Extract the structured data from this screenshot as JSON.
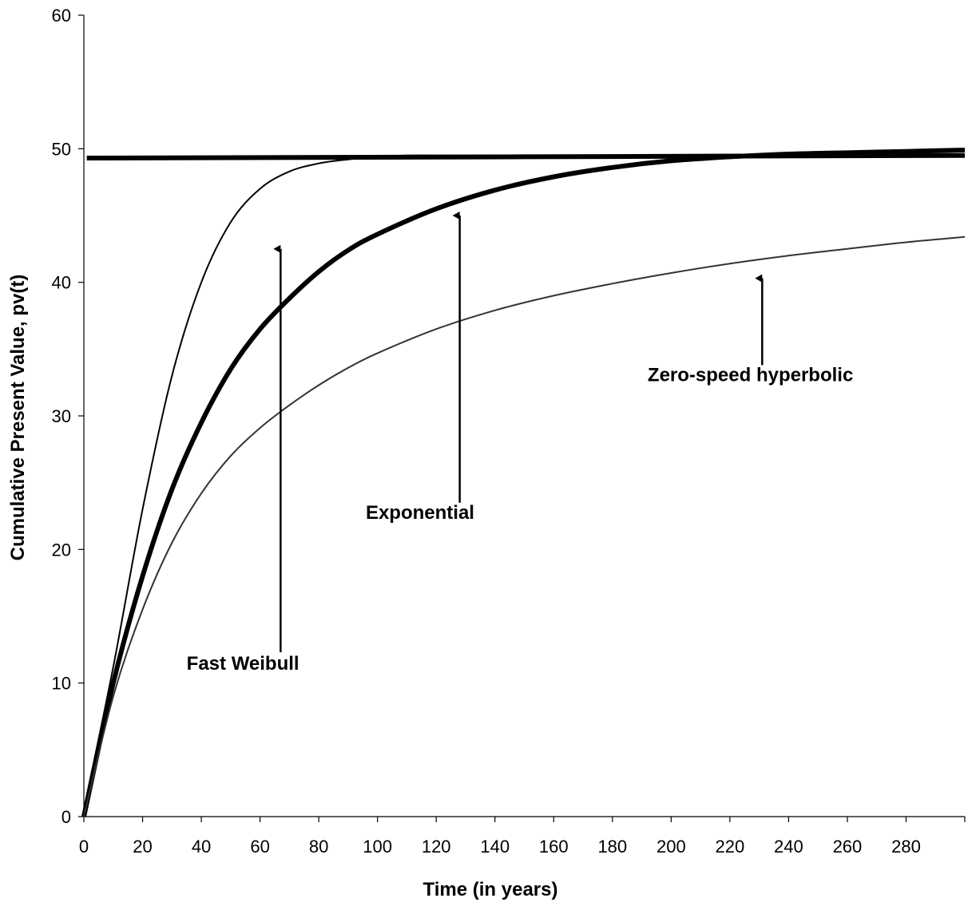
{
  "chart_data": {
    "type": "line",
    "title": "",
    "xlabel": "Time (in years)",
    "ylabel": "Cumulative Present Value, pv(t)",
    "xlim": [
      0,
      300
    ],
    "ylim": [
      0,
      60
    ],
    "x_ticks": [
      "0",
      "20",
      "40",
      "60",
      "80",
      "100",
      "120",
      "140",
      "160",
      "180",
      "200",
      "220",
      "240",
      "260",
      "280"
    ],
    "y_ticks": [
      "0",
      "10",
      "20",
      "30",
      "40",
      "50",
      "60"
    ],
    "grid": false,
    "series": [
      {
        "key": "flat",
        "x": [
          1,
          300
        ],
        "y": [
          49.3,
          49.5
        ],
        "color": "#000000",
        "weight": "heavy"
      },
      {
        "key": "fast-weibull",
        "x": [
          0,
          10,
          20,
          30,
          40,
          50,
          60,
          70,
          80,
          90,
          100,
          110,
          120,
          140,
          160,
          200,
          250,
          300
        ],
        "y": [
          0.5,
          11.2,
          23.0,
          33.0,
          40.0,
          44.5,
          47.0,
          48.3,
          48.9,
          49.2,
          49.4,
          49.5,
          49.5,
          49.5,
          49.5,
          49.5,
          49.5,
          49.5
        ],
        "color": "#000000",
        "weight": "thin"
      },
      {
        "key": "exponential",
        "x": [
          0,
          10,
          20,
          30,
          40,
          50,
          60,
          70,
          80,
          90,
          100,
          120,
          140,
          160,
          180,
          200,
          220,
          240,
          260,
          280,
          300
        ],
        "y": [
          0,
          10.0,
          18.0,
          24.5,
          29.5,
          33.5,
          36.5,
          38.8,
          40.8,
          42.4,
          43.6,
          45.5,
          46.9,
          47.9,
          48.6,
          49.1,
          49.4,
          49.6,
          49.7,
          49.8,
          49.9
        ],
        "color": "#000000",
        "weight": "heavy"
      },
      {
        "key": "zero-speed-hyperbolic",
        "x": [
          0,
          10,
          20,
          30,
          40,
          50,
          60,
          70,
          80,
          90,
          100,
          120,
          140,
          160,
          180,
          200,
          220,
          240,
          260,
          280,
          300
        ],
        "y": [
          0,
          9.0,
          15.5,
          20.5,
          24.2,
          27.0,
          29.1,
          30.8,
          32.3,
          33.6,
          34.7,
          36.5,
          37.9,
          39.0,
          39.9,
          40.7,
          41.4,
          42.0,
          42.5,
          43.0,
          43.4
        ],
        "color": "#333333",
        "weight": "thin"
      }
    ],
    "annotations": [
      {
        "key": "fast-weibull-label",
        "text": "Fast Weibull",
        "label_x": 35,
        "label_y": 11.0,
        "arrow_x": 67,
        "arrow_from_y": 12.3,
        "arrow_to_y": 42.5
      },
      {
        "key": "exponential-label",
        "text": "Exponential",
        "label_x": 96,
        "label_y": 22.3,
        "arrow_x": 128,
        "arrow_from_y": 23.5,
        "arrow_to_y": 45.0
      },
      {
        "key": "zero-speed-hyperbolic-label",
        "text": "Zero-speed hyperbolic",
        "label_x": 192,
        "label_y": 32.6,
        "arrow_x": 231,
        "arrow_from_y": 33.8,
        "arrow_to_y": 40.3
      }
    ]
  }
}
